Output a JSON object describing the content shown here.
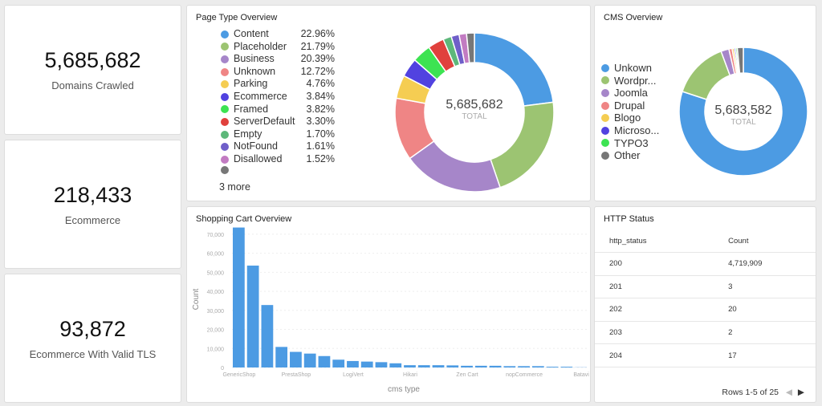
{
  "kpis": [
    {
      "value": "5,685,682",
      "label": "Domains Crawled"
    },
    {
      "value": "218,433",
      "label": "Ecommerce"
    },
    {
      "value": "93,872",
      "label": "Ecommerce With Valid TLS"
    }
  ],
  "page_type": {
    "title": "Page Type Overview",
    "total": "5,685,682",
    "total_label": "TOTAL",
    "more": "3 more",
    "items": [
      {
        "label": "Content",
        "pct": "22.96%",
        "v": 22.96,
        "color": "#4c9be3"
      },
      {
        "label": "Placeholder",
        "pct": "21.79%",
        "v": 21.79,
        "color": "#9cc472"
      },
      {
        "label": "Business",
        "pct": "20.39%",
        "v": 20.39,
        "color": "#a686c9"
      },
      {
        "label": "Unknown",
        "pct": "12.72%",
        "v": 12.72,
        "color": "#ef8585"
      },
      {
        "label": "Parking",
        "pct": "4.76%",
        "v": 4.76,
        "color": "#f5cd52"
      },
      {
        "label": "Ecommerce",
        "pct": "3.84%",
        "v": 3.84,
        "color": "#5142e0"
      },
      {
        "label": "Framed",
        "pct": "3.82%",
        "v": 3.82,
        "color": "#3de352"
      },
      {
        "label": "ServerDefault",
        "pct": "3.30%",
        "v": 3.3,
        "color": "#e0413d"
      },
      {
        "label": "Empty",
        "pct": "1.70%",
        "v": 1.7,
        "color": "#5db87a"
      },
      {
        "label": "NotFound",
        "pct": "1.61%",
        "v": 1.61,
        "color": "#6f5fc9"
      },
      {
        "label": "Disallowed",
        "pct": "1.52%",
        "v": 1.52,
        "color": "#c27bc2"
      },
      {
        "label": "",
        "pct": "",
        "v": 1.59,
        "color": "#777777"
      }
    ]
  },
  "cms": {
    "title": "CMS Overview",
    "total": "5,683,582",
    "total_label": "TOTAL",
    "items": [
      {
        "label": "Unkown",
        "v": 79.5,
        "color": "#4c9be3"
      },
      {
        "label": "Wordpr...",
        "v": 14.2,
        "color": "#9cc472"
      },
      {
        "label": "Joomla",
        "v": 2.0,
        "color": "#a686c9"
      },
      {
        "label": "Drupal",
        "v": 0.8,
        "color": "#ef8585"
      },
      {
        "label": "Blogo",
        "v": 0.5,
        "color": "#f5cd52"
      },
      {
        "label": "Microso...",
        "v": 0.4,
        "color": "#5142e0"
      },
      {
        "label": "TYPO3",
        "v": 0.4,
        "color": "#3de352"
      },
      {
        "label": "Other",
        "v": 1.5,
        "color": "#777777"
      }
    ]
  },
  "chart_data": {
    "type": "bar",
    "title": "Shopping Cart Overview",
    "xlabel": "cms type",
    "ylabel": "Count",
    "ylim": [
      0,
      75000
    ],
    "yticks": [
      "0",
      "10,000",
      "20,000",
      "30,000",
      "40,000",
      "50,000",
      "60,000",
      "70,000"
    ],
    "categories": [
      "GenericShop",
      "",
      "",
      "",
      "PrestaShop",
      "",
      "",
      "",
      "LogiVert",
      "",
      "",
      "",
      "Hikari",
      "",
      "",
      "",
      "Zen Cart",
      "",
      "",
      "",
      "nopCommerce",
      "",
      "",
      "",
      "Batavi"
    ],
    "values": [
      73500,
      53500,
      32800,
      10800,
      8200,
      7300,
      6000,
      4100,
      3400,
      3100,
      2800,
      2200,
      1200,
      1200,
      1200,
      1100,
      900,
      900,
      900,
      700,
      700,
      700,
      400,
      400,
      100
    ],
    "color": "#4c9be3"
  },
  "http": {
    "title": "HTTP Status",
    "headers": [
      "http_status",
      "Count"
    ],
    "rows": [
      [
        "200",
        "4,719,909"
      ],
      [
        "201",
        "3"
      ],
      [
        "202",
        "20"
      ],
      [
        "203",
        "2"
      ],
      [
        "204",
        "17"
      ]
    ],
    "pager": "Rows 1-5 of 25"
  }
}
